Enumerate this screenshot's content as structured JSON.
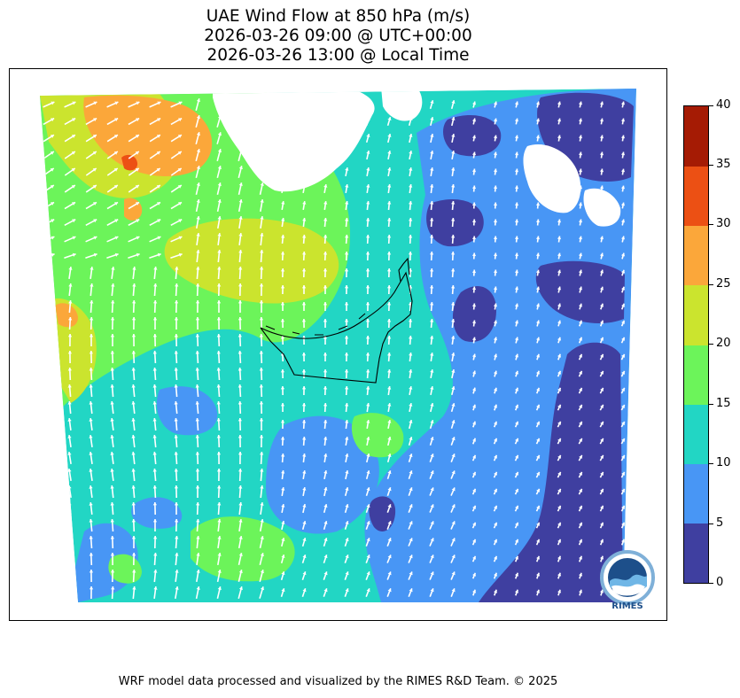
{
  "title": {
    "line1": "UAE Wind Flow at 850 hPa (m/s)",
    "line2": "2026-03-26 09:00 @ UTC+00:00",
    "line3": "2026-03-26 13:00 @ Local Time"
  },
  "colorbar": {
    "levels": [
      0,
      5,
      10,
      15,
      20,
      25,
      30,
      35,
      40
    ],
    "labels": [
      "0",
      "5",
      "10",
      "15",
      "20",
      "25",
      "30",
      "35",
      "40"
    ],
    "colors": [
      "#3f3fa0",
      "#4896f5",
      "#22d6c4",
      "#6cf45a",
      "#cbe42e",
      "#fba73a",
      "#ec5014",
      "#a51b04"
    ]
  },
  "map": {
    "region": "United Arab Emirates",
    "field": "wind speed at 850 hPa",
    "units": "m/s",
    "background_level_color": "#22d6c4"
  },
  "logo": {
    "text": "RIMES"
  },
  "credit": "WRF model data processed and visualized by the RIMES R&D Team. © 2025"
}
